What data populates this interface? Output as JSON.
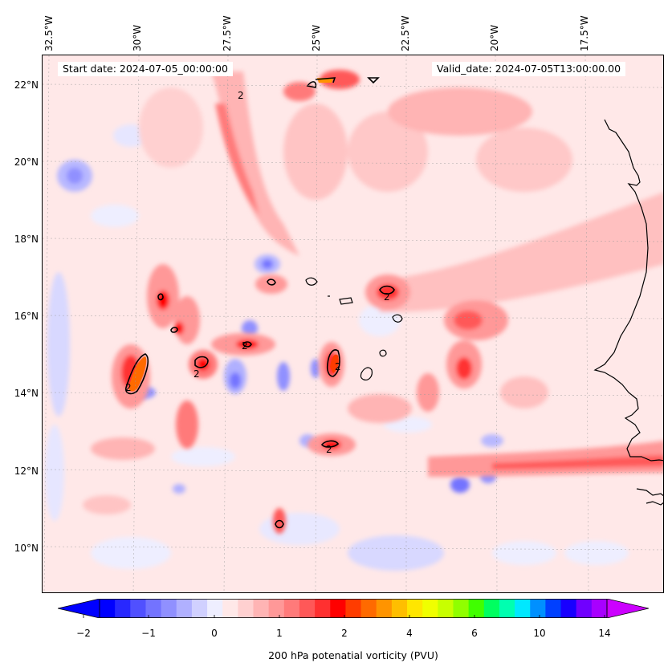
{
  "header": {
    "start_date": "Start date: 2024-07-05_00:00:00",
    "valid_date": "Valid_date: 2024-07-05T13:00:00.00"
  },
  "longitude_labels": [
    "32.5°W",
    "30°W",
    "27.5°W",
    "25°W",
    "22.5°W",
    "20°W",
    "17.5°W"
  ],
  "latitude_labels": [
    "22°N",
    "20°N",
    "18°N",
    "16°N",
    "14°N",
    "12°N",
    "10°N"
  ],
  "contour_label": "2",
  "colorbar": {
    "title": "200 hPa potenatial vorticity (PVU)",
    "tick_labels": [
      "−2",
      "−1",
      "0",
      "1",
      "2",
      "4",
      "6",
      "10",
      "14"
    ],
    "colors": [
      "#0000ff",
      "#2828ff",
      "#5050ff",
      "#7373ff",
      "#9090ff",
      "#b0b0ff",
      "#d0d0ff",
      "#eeeeff",
      "#ffe8e8",
      "#ffd0d0",
      "#ffb4b4",
      "#ff9898",
      "#ff7a7a",
      "#ff5858",
      "#ff3030",
      "#ff0000",
      "#ff3c00",
      "#ff6a00",
      "#ff9400",
      "#ffbe00",
      "#ffe600",
      "#f0ff00",
      "#c8ff00",
      "#90ff00",
      "#40ff00",
      "#00ff60",
      "#00ffb0",
      "#00e8ff",
      "#0090ff",
      "#0040ff",
      "#1800ff",
      "#7000ff",
      "#a800ff"
    ],
    "extend_low_color": "#0000ff",
    "extend_high_color": "#cc00ff"
  }
}
